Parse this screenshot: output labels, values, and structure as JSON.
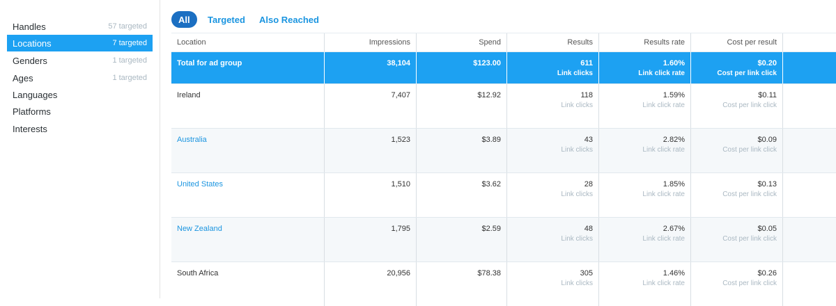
{
  "sidebar": {
    "items": [
      {
        "label": "Handles",
        "count": "57 targeted"
      },
      {
        "label": "Locations",
        "count": "7 targeted"
      },
      {
        "label": "Genders",
        "count": "1 targeted"
      },
      {
        "label": "Ages",
        "count": "1 targeted"
      },
      {
        "label": "Languages",
        "count": ""
      },
      {
        "label": "Platforms",
        "count": ""
      },
      {
        "label": "Interests",
        "count": ""
      }
    ],
    "active": "Locations"
  },
  "tabs": {
    "all": "All",
    "targeted": "Targeted",
    "also_reached": "Also Reached"
  },
  "table": {
    "headers": {
      "location": "Location",
      "impressions": "Impressions",
      "spend": "Spend",
      "results": "Results",
      "results_rate": "Results rate",
      "cost_per_result": "Cost per result"
    },
    "total": {
      "location": "Total for ad group",
      "impressions": "38,104",
      "spend": "$123.00",
      "results": "611",
      "results_sub": "Link clicks",
      "rate": "1.60%",
      "rate_sub": "Link click rate",
      "cost": "$0.20",
      "cost_sub": "Cost per link click"
    },
    "rows": [
      {
        "location": "Ireland",
        "impressions": "7,407",
        "spend": "$12.92",
        "results": "118",
        "results_sub": "Link clicks",
        "rate": "1.59%",
        "rate_sub": "Link click rate",
        "cost": "$0.11",
        "cost_sub": "Cost per link click"
      },
      {
        "location": "Australia",
        "impressions": "1,523",
        "spend": "$3.89",
        "results": "43",
        "results_sub": "Link clicks",
        "rate": "2.82%",
        "rate_sub": "Link click rate",
        "cost": "$0.09",
        "cost_sub": "Cost per link click"
      },
      {
        "location": "United States",
        "impressions": "1,510",
        "spend": "$3.62",
        "results": "28",
        "results_sub": "Link clicks",
        "rate": "1.85%",
        "rate_sub": "Link click rate",
        "cost": "$0.13",
        "cost_sub": "Cost per link click"
      },
      {
        "location": "New Zealand",
        "impressions": "1,795",
        "spend": "$2.59",
        "results": "48",
        "results_sub": "Link clicks",
        "rate": "2.67%",
        "rate_sub": "Link click rate",
        "cost": "$0.05",
        "cost_sub": "Cost per link click"
      },
      {
        "location": "South Africa",
        "impressions": "20,956",
        "spend": "$78.38",
        "results": "305",
        "results_sub": "Link clicks",
        "rate": "1.46%",
        "rate_sub": "Link click rate",
        "cost": "$0.26",
        "cost_sub": "Cost per link click"
      }
    ]
  },
  "colors": {
    "accent": "#1da1f2",
    "pill": "#1b6fc2",
    "link": "#1b95e0"
  }
}
